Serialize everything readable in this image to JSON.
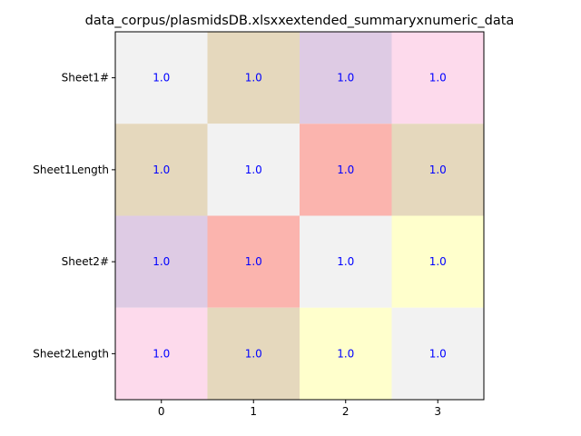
{
  "chart_data": {
    "type": "heatmap",
    "title": "data_corpus/plasmidsDB.xlsxxextended_summaryxnumeric_data",
    "x_categories": [
      "0",
      "1",
      "2",
      "3"
    ],
    "y_categories": [
      "Sheet1#",
      "Sheet1Length",
      "Sheet2#",
      "Sheet2Length"
    ],
    "values": [
      [
        1.0,
        1.0,
        1.0,
        1.0
      ],
      [
        1.0,
        1.0,
        1.0,
        1.0
      ],
      [
        1.0,
        1.0,
        1.0,
        1.0
      ],
      [
        1.0,
        1.0,
        1.0,
        1.0
      ]
    ],
    "value_labels": [
      [
        "1.0",
        "1.0",
        "1.0",
        "1.0"
      ],
      [
        "1.0",
        "1.0",
        "1.0",
        "1.0"
      ],
      [
        "1.0",
        "1.0",
        "1.0",
        "1.0"
      ],
      [
        "1.0",
        "1.0",
        "1.0",
        "1.0"
      ]
    ],
    "cell_colors": [
      [
        "#f2f2f2",
        "#e5d8bd",
        "#decbe4",
        "#fddaec"
      ],
      [
        "#e5d8bd",
        "#f2f2f2",
        "#fbb4ae",
        "#e5d8bd"
      ],
      [
        "#decbe4",
        "#fbb4ae",
        "#f2f2f2",
        "#ffffcc"
      ],
      [
        "#fddaec",
        "#e5d8bd",
        "#ffffcc",
        "#f2f2f2"
      ]
    ],
    "label_color": "#0000ff",
    "grid": false,
    "legend": "none"
  }
}
